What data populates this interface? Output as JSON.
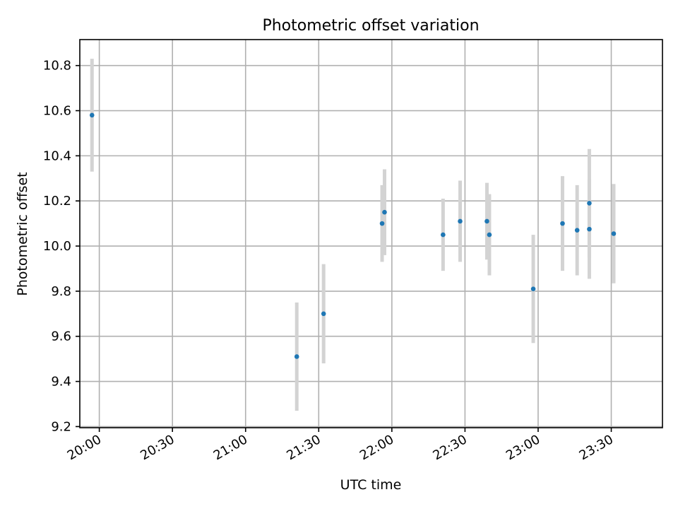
{
  "chart_data": {
    "type": "scatter",
    "title": "Photometric offset variation",
    "xlabel": "UTC time",
    "ylabel": "Photometric offset",
    "x_is_time": true,
    "xlim": [
      "19:52",
      "23:51"
    ],
    "ylim": [
      9.195,
      10.915
    ],
    "xticks": [
      "20:00",
      "20:30",
      "21:00",
      "21:30",
      "22:00",
      "22:30",
      "23:00",
      "23:30"
    ],
    "yticks": [
      9.2,
      9.4,
      9.6,
      9.8,
      10.0,
      10.2,
      10.4,
      10.6,
      10.8
    ],
    "ytick_labels": [
      "9.2",
      "9.4",
      "9.6",
      "9.8",
      "10.0",
      "10.2",
      "10.4",
      "10.6",
      "10.8"
    ],
    "grid": true,
    "marker_color": "#1f77b4",
    "error_color": "#d3d3d3",
    "points": [
      {
        "x": "19:57",
        "y": 10.58,
        "err": 0.25
      },
      {
        "x": "21:21",
        "y": 9.51,
        "err": 0.24
      },
      {
        "x": "21:32",
        "y": 9.7,
        "err": 0.22
      },
      {
        "x": "21:56",
        "y": 10.1,
        "err": 0.17
      },
      {
        "x": "21:57",
        "y": 10.15,
        "err": 0.19
      },
      {
        "x": "22:21",
        "y": 10.05,
        "err": 0.16
      },
      {
        "x": "22:28",
        "y": 10.11,
        "err": 0.18
      },
      {
        "x": "22:39",
        "y": 10.11,
        "err": 0.17
      },
      {
        "x": "22:40",
        "y": 10.05,
        "err": 0.18
      },
      {
        "x": "22:58",
        "y": 9.81,
        "err": 0.24
      },
      {
        "x": "23:10",
        "y": 10.1,
        "err": 0.21
      },
      {
        "x": "23:16",
        "y": 10.07,
        "err": 0.2
      },
      {
        "x": "23:21",
        "y": 10.19,
        "err": 0.24
      },
      {
        "x": "23:21",
        "y": 10.075,
        "err": 0.22
      },
      {
        "x": "23:31",
        "y": 10.055,
        "err": 0.22
      }
    ]
  }
}
